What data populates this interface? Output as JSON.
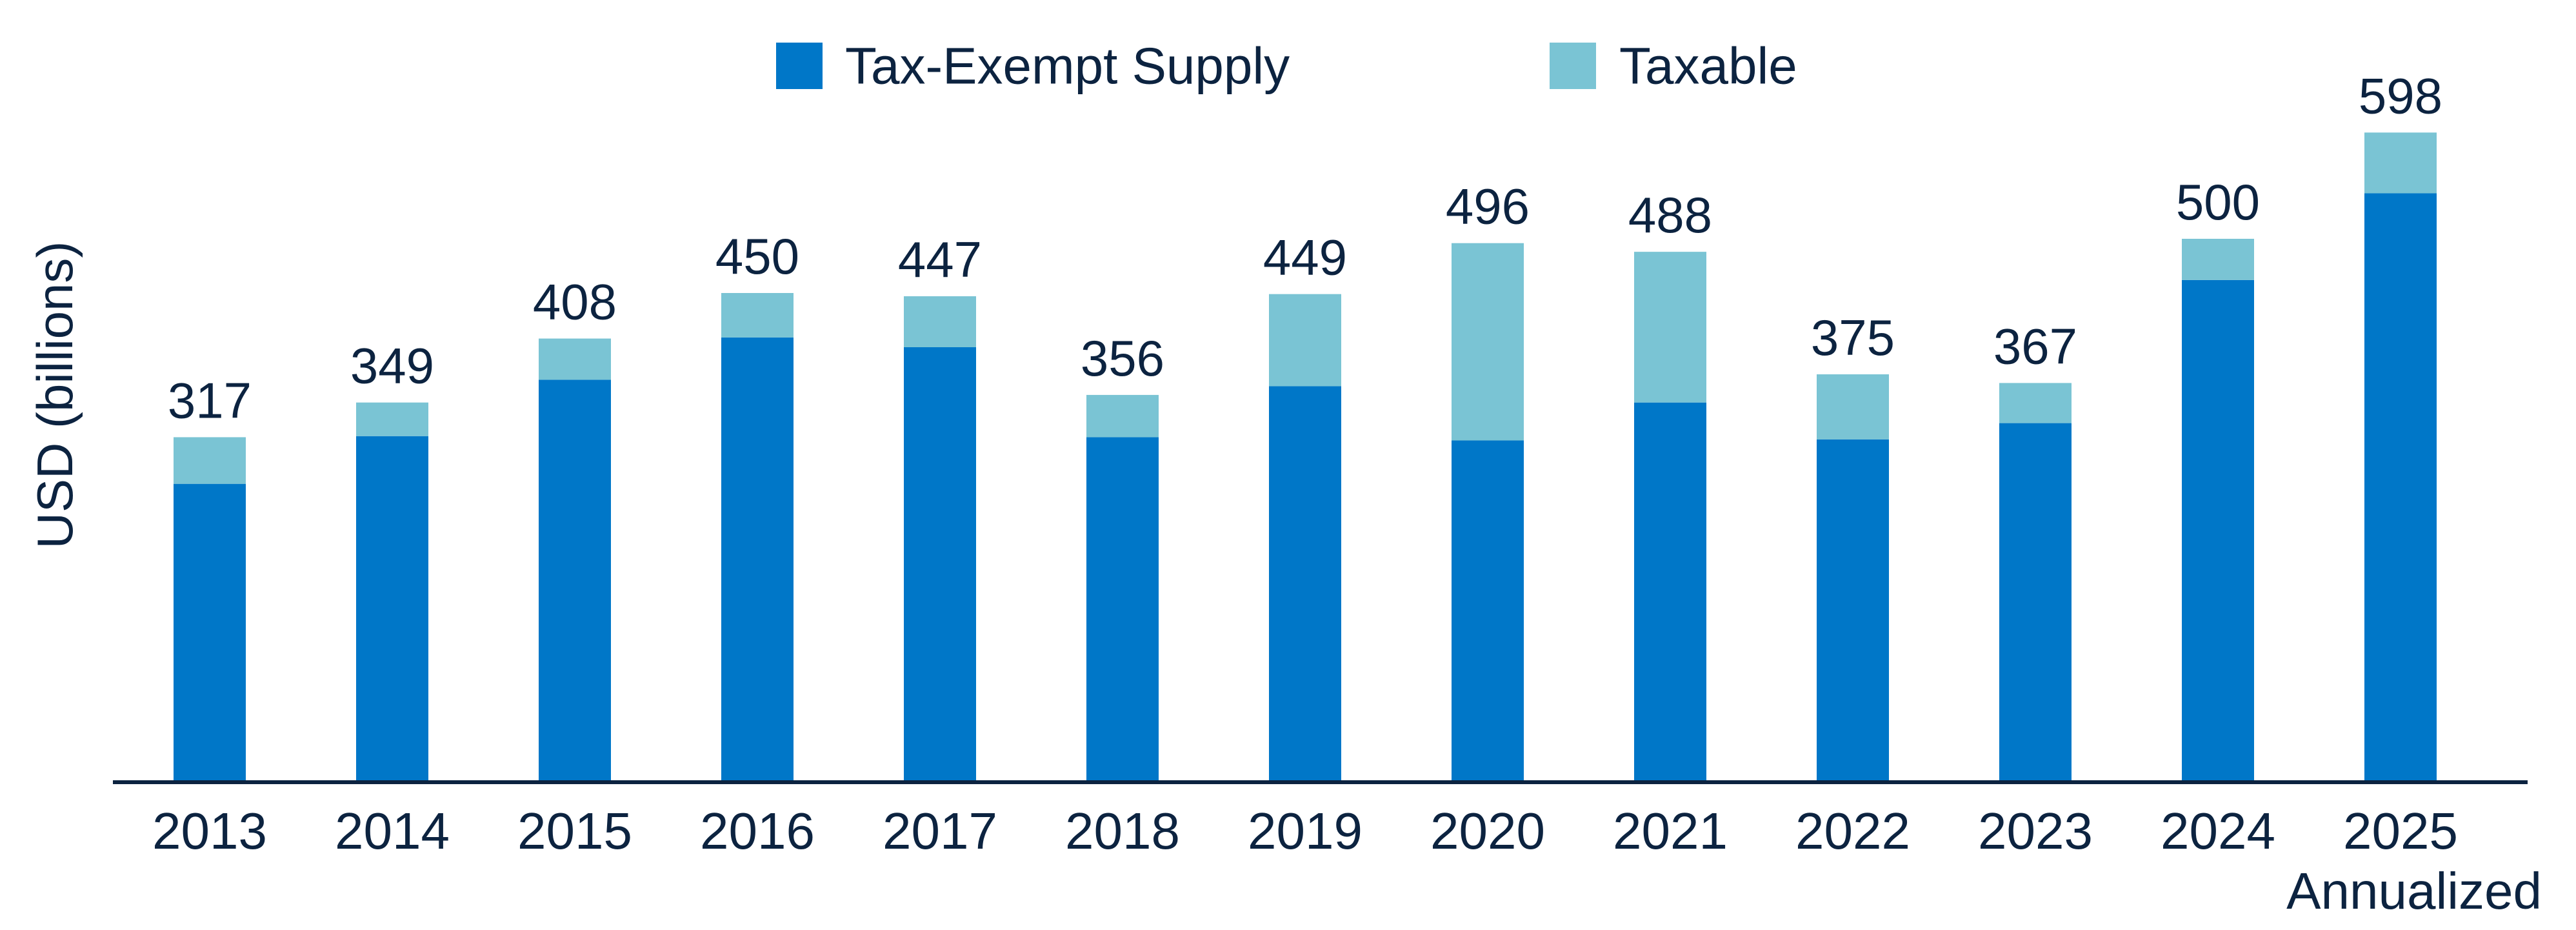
{
  "colors": {
    "tax_exempt": "#0077c8",
    "taxable": "#7ac4d4",
    "text": "#0c2340",
    "axis": "#0c2340"
  },
  "chart_data": {
    "type": "bar",
    "stacked": true,
    "categories": [
      "2013",
      "2014",
      "2015",
      "2016",
      "2017",
      "2018",
      "2019",
      "2020",
      "2021",
      "2022",
      "2023",
      "2024",
      "2025"
    ],
    "category_sublabels": [
      "",
      "",
      "",
      "",
      "",
      "",
      "",
      "",
      "",
      "",
      "",
      "",
      "Annualized"
    ],
    "series": [
      {
        "name": "Tax-Exempt Supply",
        "color": "#0077c8",
        "values": [
          274,
          318,
          370,
          409,
          400,
          317,
          364,
          314,
          349,
          315,
          330,
          462,
          542
        ]
      },
      {
        "name": "Taxable",
        "color": "#7ac4d4",
        "values": [
          43,
          31,
          38,
          41,
          47,
          39,
          85,
          182,
          139,
          60,
          37,
          38,
          56
        ]
      }
    ],
    "totals": [
      317,
      349,
      408,
      450,
      447,
      356,
      449,
      496,
      488,
      375,
      367,
      500,
      598
    ],
    "ylabel": "USD (billions)",
    "ylim": [
      0,
      600
    ],
    "yticks_shown": false,
    "grid": false,
    "legend": "top-center"
  }
}
